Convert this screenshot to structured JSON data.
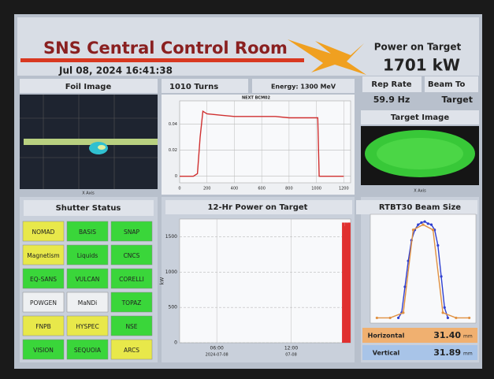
{
  "header": {
    "title": "SNS Central Control Room",
    "datetime": "Jul 08, 2024 16:41:38",
    "power_label": "Power on Target",
    "power_value": "1701 kW"
  },
  "status": {
    "turns": "1010  Turns",
    "energy": "Energy: 1300 MeV",
    "rep_rate_label": "Rep Rate",
    "rep_rate": "59.9 Hz",
    "beam_to_label": "Beam To",
    "beam_to": "Target"
  },
  "foil_image": {
    "title": "Foil Image",
    "axis": "X Axis"
  },
  "target_image": {
    "title": "Target Image",
    "axis": "X Axis"
  },
  "shutters": {
    "title": "Shutter Status",
    "items": [
      {
        "name": "NOMAD",
        "color": "#e8e84a"
      },
      {
        "name": "BASIS",
        "color": "#3ad63a"
      },
      {
        "name": "SNAP",
        "color": "#3ad63a"
      },
      {
        "name": "Magnetism",
        "color": "#e8e84a"
      },
      {
        "name": "Liquids",
        "color": "#3ad63a"
      },
      {
        "name": "CNCS",
        "color": "#3ad63a"
      },
      {
        "name": "EQ-SANS",
        "color": "#3ad63a"
      },
      {
        "name": "VULCAN",
        "color": "#3ad63a"
      },
      {
        "name": "CORELLI",
        "color": "#3ad63a"
      },
      {
        "name": "POWGEN",
        "color": "#eef0f2"
      },
      {
        "name": "MaNDi",
        "color": "#eef0f2"
      },
      {
        "name": "TOPAZ",
        "color": "#3ad63a"
      },
      {
        "name": "FNPB",
        "color": "#e8e84a"
      },
      {
        "name": "HYSPEC",
        "color": "#e8e84a"
      },
      {
        "name": "NSE",
        "color": "#3ad63a"
      },
      {
        "name": "VISION",
        "color": "#3ad63a"
      },
      {
        "name": "SEQUOIA",
        "color": "#3ad63a"
      },
      {
        "name": "ARCS",
        "color": "#e8e84a"
      }
    ]
  },
  "chart_data": [
    {
      "type": "line",
      "title": "NEXT BCM02",
      "x": [
        0,
        100,
        130,
        150,
        170,
        200,
        300,
        400,
        500,
        600,
        700,
        800,
        900,
        1000,
        1010,
        1020,
        1100,
        1200
      ],
      "series": [
        {
          "color": "#d03030",
          "values": [
            0,
            0,
            0.002,
            0.03,
            0.05,
            0.048,
            0.047,
            0.046,
            0.046,
            0.046,
            0.046,
            0.045,
            0.045,
            0.045,
            0.045,
            0,
            0,
            0
          ]
        }
      ],
      "xlim": [
        0,
        1250
      ],
      "xticks": [
        0,
        200,
        400,
        600,
        800,
        1000,
        1200
      ],
      "ylim": [
        -0.005,
        0.058
      ],
      "yticks": [
        0,
        0.02,
        0.04
      ],
      "grid": true
    },
    {
      "type": "bar",
      "title": "12-Hr Power on Target",
      "ylabel": "kW",
      "x": [
        16.2,
        16.3,
        16.4,
        16.5,
        16.6,
        16.7
      ],
      "values": [
        1700,
        1650,
        1700,
        1690,
        1700,
        1700
      ],
      "color": "#e03030",
      "xlim": [
        3,
        16.8
      ],
      "xticks": [
        {
          "value": 6,
          "label": "06:00"
        },
        {
          "value": 12,
          "label": "12:00"
        }
      ],
      "xtick_dates": [
        "2024-07-08",
        "07-08"
      ],
      "ylim": [
        0,
        1750
      ],
      "yticks": [
        0,
        500,
        1000,
        1500
      ],
      "grid": true
    },
    {
      "type": "line",
      "title": "RTBT30 Beam Size",
      "series": [
        {
          "color": "#3040d0",
          "x": [
            -75,
            -65,
            -55,
            -45,
            -35,
            -25,
            -15,
            -5,
            5,
            15,
            25,
            35,
            45,
            55,
            65,
            75
          ],
          "values": [
            0.05,
            0.1,
            0.35,
            0.6,
            0.8,
            0.9,
            0.95,
            0.97,
            0.98,
            0.96,
            0.95,
            0.9,
            0.75,
            0.45,
            0.15,
            0.05
          ]
        },
        {
          "color": "#e09040",
          "x": [
            -140,
            -100,
            -60,
            -30,
            0,
            30,
            60,
            100,
            140
          ],
          "values": [
            0.05,
            0.05,
            0.1,
            0.9,
            0.95,
            0.9,
            0.1,
            0.05,
            0.05
          ]
        }
      ],
      "xlim": [
        -160,
        160
      ],
      "ylim": [
        0,
        1.05
      ],
      "grid": true,
      "readouts": [
        {
          "label": "Horizontal",
          "value": "31.40",
          "unit": "mm",
          "color": "#f0b070"
        },
        {
          "label": "Vertical",
          "value": "31.89",
          "unit": "mm",
          "color": "#a8c4e8"
        }
      ]
    }
  ]
}
